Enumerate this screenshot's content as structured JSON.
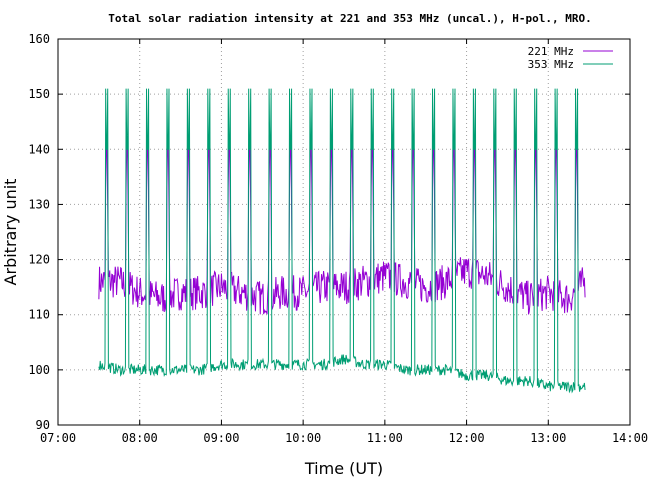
{
  "chart_data": {
    "type": "line",
    "title": "Total solar radiation intensity at 221 and 353 MHz (uncal.), H-pol., MRO.",
    "xlabel": "Time (UT)",
    "ylabel": "Arbitrary unit",
    "xlim": [
      "07:00",
      "14:00"
    ],
    "ylim": [
      90,
      160
    ],
    "x_ticks": [
      "07:00",
      "08:00",
      "09:00",
      "10:00",
      "11:00",
      "12:00",
      "13:00",
      "14:00"
    ],
    "y_ticks": [
      "90",
      "100",
      "110",
      "120",
      "130",
      "140",
      "150",
      "160"
    ],
    "grid": true,
    "legend_position": "top-right",
    "series": [
      {
        "name": "221 MHz",
        "color": "#9400d3",
        "baseline": [
          [
            "07:30",
            116
          ],
          [
            "07:45",
            116
          ],
          [
            "08:00",
            114
          ],
          [
            "08:15",
            113
          ],
          [
            "08:30",
            114
          ],
          [
            "08:45",
            114
          ],
          [
            "09:00",
            115
          ],
          [
            "09:15",
            114
          ],
          [
            "09:30",
            113
          ],
          [
            "09:45",
            114
          ],
          [
            "10:00",
            114
          ],
          [
            "10:15",
            115
          ],
          [
            "10:30",
            115
          ],
          [
            "10:45",
            116
          ],
          [
            "11:00",
            117
          ],
          [
            "11:15",
            116
          ],
          [
            "11:30",
            115
          ],
          [
            "11:45",
            116
          ],
          [
            "12:00",
            118
          ],
          [
            "12:15",
            117
          ],
          [
            "12:30",
            115
          ],
          [
            "12:45",
            113
          ],
          [
            "13:00",
            114
          ],
          [
            "13:15",
            113
          ],
          [
            "13:27",
            116
          ]
        ],
        "peak_value": 141,
        "spike_value": 133
      },
      {
        "name": "353 MHz",
        "color": "#009e73",
        "baseline": [
          [
            "07:30",
            101
          ],
          [
            "07:45",
            100
          ],
          [
            "08:00",
            100
          ],
          [
            "08:15",
            100
          ],
          [
            "08:30",
            100
          ],
          [
            "08:45",
            100
          ],
          [
            "09:00",
            101
          ],
          [
            "09:15",
            101
          ],
          [
            "09:30",
            101
          ],
          [
            "09:45",
            101
          ],
          [
            "10:00",
            101
          ],
          [
            "10:15",
            101
          ],
          [
            "10:30",
            102
          ],
          [
            "10:45",
            101
          ],
          [
            "11:00",
            101
          ],
          [
            "11:15",
            100
          ],
          [
            "11:30",
            100
          ],
          [
            "11:45",
            100
          ],
          [
            "12:00",
            99
          ],
          [
            "12:15",
            99
          ],
          [
            "12:30",
            98
          ],
          [
            "12:45",
            98
          ],
          [
            "13:00",
            97
          ],
          [
            "13:15",
            97
          ],
          [
            "13:27",
            97
          ]
        ],
        "peak_value": 151
      }
    ],
    "calibration_times": [
      "07:35",
      "07:50",
      "08:05",
      "08:20",
      "08:35",
      "08:50",
      "09:05",
      "09:20",
      "09:35",
      "09:50",
      "10:05",
      "10:20",
      "10:35",
      "10:50",
      "11:05",
      "11:20",
      "11:35",
      "11:50",
      "12:05",
      "12:20",
      "12:35",
      "12:50",
      "13:05",
      "13:20"
    ]
  }
}
